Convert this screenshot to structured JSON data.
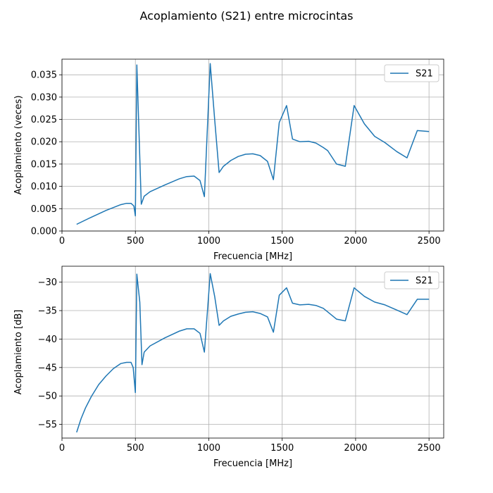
{
  "figure": {
    "suptitle": "Acoplamiento (S21) entre microcintas"
  },
  "colors": {
    "series": "#1f77b4",
    "grid": "#b0b0b0",
    "axes": "#000000",
    "legend_border": "#cccccc"
  },
  "chart_data": [
    {
      "type": "line",
      "title": "",
      "xlabel": "Frecuencia [MHz]",
      "ylabel": "Acoplamiento (veces)",
      "xlim": [
        0,
        2600
      ],
      "ylim": [
        0,
        0.0385
      ],
      "xticks": [
        0,
        500,
        1000,
        1500,
        2000,
        2500
      ],
      "xtick_labels": [
        "0",
        "500",
        "1000",
        "1500",
        "2000",
        "2500"
      ],
      "yticks": [
        0,
        0.005,
        0.01,
        0.015,
        0.02,
        0.025,
        0.03,
        0.035
      ],
      "ytick_labels": [
        "0.000",
        "0.005",
        "0.010",
        "0.015",
        "0.020",
        "0.025",
        "0.030",
        "0.035"
      ],
      "grid": true,
      "legend": "top-right",
      "series": [
        {
          "name": "S21",
          "x": [
            100,
            200,
            300,
            400,
            440,
            470,
            490,
            500,
            510,
            540,
            560,
            600,
            700,
            800,
            850,
            900,
            940,
            970,
            1010,
            1040,
            1070,
            1100,
            1150,
            1200,
            1250,
            1300,
            1350,
            1400,
            1440,
            1480,
            1530,
            1570,
            1620,
            1680,
            1730,
            1780,
            1810,
            1870,
            1930,
            1990,
            2060,
            2130,
            2200,
            2280,
            2350,
            2420,
            2500
          ],
          "y": [
            0.0015,
            0.0031,
            0.0046,
            0.0059,
            0.0062,
            0.0062,
            0.0056,
            0.0034,
            0.0372,
            0.006,
            0.0078,
            0.0088,
            0.0103,
            0.0117,
            0.0122,
            0.0123,
            0.0113,
            0.0077,
            0.0375,
            0.025,
            0.0131,
            0.0145,
            0.0158,
            0.0167,
            0.0172,
            0.0173,
            0.0169,
            0.0156,
            0.0115,
            0.0243,
            0.0281,
            0.0206,
            0.02,
            0.0201,
            0.0197,
            0.0187,
            0.018,
            0.015,
            0.0145,
            0.0281,
            0.024,
            0.0212,
            0.0198,
            0.0178,
            0.0164,
            0.0225,
            0.0223
          ]
        }
      ]
    },
    {
      "type": "line",
      "title": "",
      "xlabel": "Frecuencia [MHz]",
      "ylabel": "Acoplamiento [dB]",
      "xlim": [
        0,
        2600
      ],
      "ylim": [
        -57.4,
        -27.2
      ],
      "xticks": [
        0,
        500,
        1000,
        1500,
        2000,
        2500
      ],
      "xtick_labels": [
        "0",
        "500",
        "1000",
        "1500",
        "2000",
        "2500"
      ],
      "yticks": [
        -55,
        -50,
        -45,
        -40,
        -35,
        -30
      ],
      "ytick_labels": [
        "−55",
        "−50",
        "−45",
        "−40",
        "−35",
        "−30"
      ],
      "grid": true,
      "legend": "top-right",
      "series": [
        {
          "name": "S21",
          "x": [
            100,
            130,
            160,
            200,
            250,
            300,
            350,
            400,
            440,
            470,
            485,
            500,
            510,
            530,
            545,
            560,
            600,
            700,
            800,
            850,
            900,
            940,
            970,
            1010,
            1040,
            1070,
            1100,
            1150,
            1200,
            1250,
            1300,
            1350,
            1400,
            1440,
            1480,
            1530,
            1570,
            1620,
            1680,
            1730,
            1780,
            1870,
            1930,
            1990,
            2060,
            2130,
            2200,
            2280,
            2350,
            2420,
            2500
          ],
          "y": [
            -56.4,
            -54.0,
            -52.1,
            -50.1,
            -48.0,
            -46.5,
            -45.2,
            -44.3,
            -44.1,
            -44.1,
            -45.0,
            -49.4,
            -28.6,
            -33.5,
            -44.5,
            -42.3,
            -41.2,
            -39.8,
            -38.6,
            -38.2,
            -38.2,
            -39.0,
            -42.3,
            -28.5,
            -32.5,
            -37.6,
            -36.8,
            -36.0,
            -35.6,
            -35.3,
            -35.2,
            -35.5,
            -36.1,
            -38.8,
            -32.3,
            -31.0,
            -33.7,
            -34.0,
            -33.9,
            -34.1,
            -34.6,
            -36.5,
            -36.8,
            -31.0,
            -32.5,
            -33.5,
            -34.0,
            -34.9,
            -35.7,
            -33.0,
            -33.0
          ]
        }
      ]
    }
  ]
}
